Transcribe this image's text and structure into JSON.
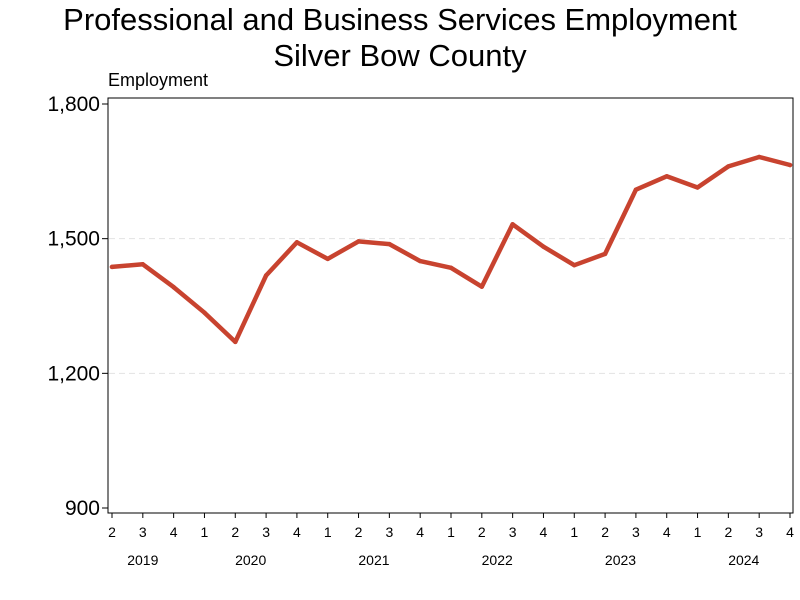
{
  "chart_data": {
    "type": "line",
    "title": "Professional and Business Services Employment",
    "subtitle": "Silver Bow County",
    "ylabel": "Employment",
    "xlabel": "",
    "ylim": [
      900,
      1800
    ],
    "yticks": [
      900,
      1200,
      1500,
      1800
    ],
    "ytick_labels": [
      "900",
      "1,200",
      "1,500",
      "1,800"
    ],
    "grid": "horizontal dashed",
    "line_color": "#c8432f",
    "categories": [
      "2",
      "3",
      "4",
      "1",
      "2",
      "3",
      "4",
      "1",
      "2",
      "3",
      "4",
      "1",
      "2",
      "3",
      "4",
      "1",
      "2",
      "3",
      "4",
      "1",
      "2",
      "3",
      "4"
    ],
    "years": [
      {
        "label": "2019",
        "start_index": 0,
        "end_index": 2
      },
      {
        "label": "2020",
        "start_index": 3,
        "end_index": 6
      },
      {
        "label": "2021",
        "start_index": 7,
        "end_index": 10
      },
      {
        "label": "2022",
        "start_index": 11,
        "end_index": 14
      },
      {
        "label": "2023",
        "start_index": 15,
        "end_index": 18
      },
      {
        "label": "2024",
        "start_index": 19,
        "end_index": 22
      }
    ],
    "series": [
      {
        "values": [
          1437,
          1443,
          1392,
          1335,
          1270,
          1418,
          1492,
          1455,
          1494,
          1488,
          1450,
          1435,
          1393,
          1532,
          1482,
          1441,
          1466,
          1609,
          1639,
          1614,
          1661,
          1682,
          1664
        ]
      }
    ]
  }
}
